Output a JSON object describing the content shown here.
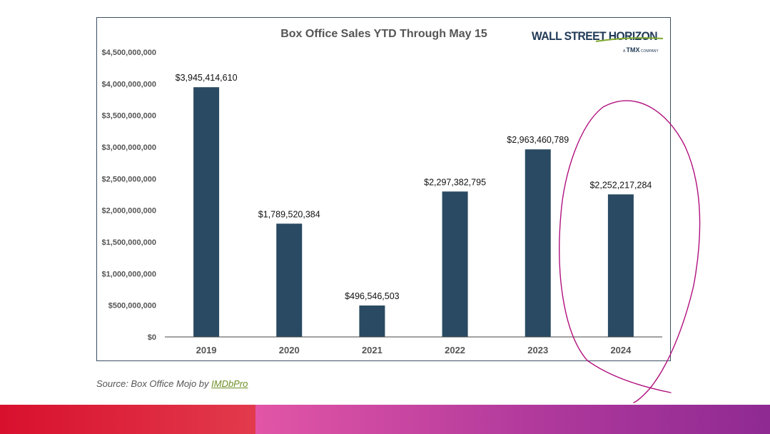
{
  "chart_data": {
    "type": "bar",
    "title": "Box Office Sales YTD Through May 15",
    "xlabel": "",
    "ylabel": "",
    "categories": [
      "2019",
      "2020",
      "2021",
      "2022",
      "2023",
      "2024"
    ],
    "values": [
      3945414610,
      1789520384,
      496546503,
      2297382795,
      2963460789,
      2252217284
    ],
    "data_labels": [
      "$3,945,414,610",
      "$1,789,520,384",
      "$496,546,503",
      "$2,297,382,795",
      "$2,963,460,789",
      "$2,252,217,284"
    ],
    "ylim": [
      0,
      4500000000
    ],
    "y_ticks": [
      0,
      500000000,
      1000000000,
      1500000000,
      2000000000,
      2500000000,
      3000000000,
      3500000000,
      4000000000,
      4500000000
    ],
    "y_tick_labels": [
      "$0",
      "$500,000,000",
      "$1,000,000,000",
      "$1,500,000,000",
      "$2,000,000,000",
      "$2,500,000,000",
      "$3,000,000,000",
      "$3,500,000,000",
      "$4,000,000,000",
      "$4,500,000,000"
    ],
    "grid": false,
    "legend": "none",
    "bar_color": "#294a62"
  },
  "logo": {
    "name": "WALL STREET HORIZON",
    "sub_prefix": "A",
    "sub_brand": "TMX",
    "sub_suffix": "COMPANY"
  },
  "source": {
    "prefix": "Source: Box Office Mojo by ",
    "link": "IMDbPro"
  },
  "colors": {
    "annotation": "#b0107e",
    "frame": "#3a4f63",
    "footer_left": "#d8102e",
    "footer_right": "#a3359a"
  }
}
